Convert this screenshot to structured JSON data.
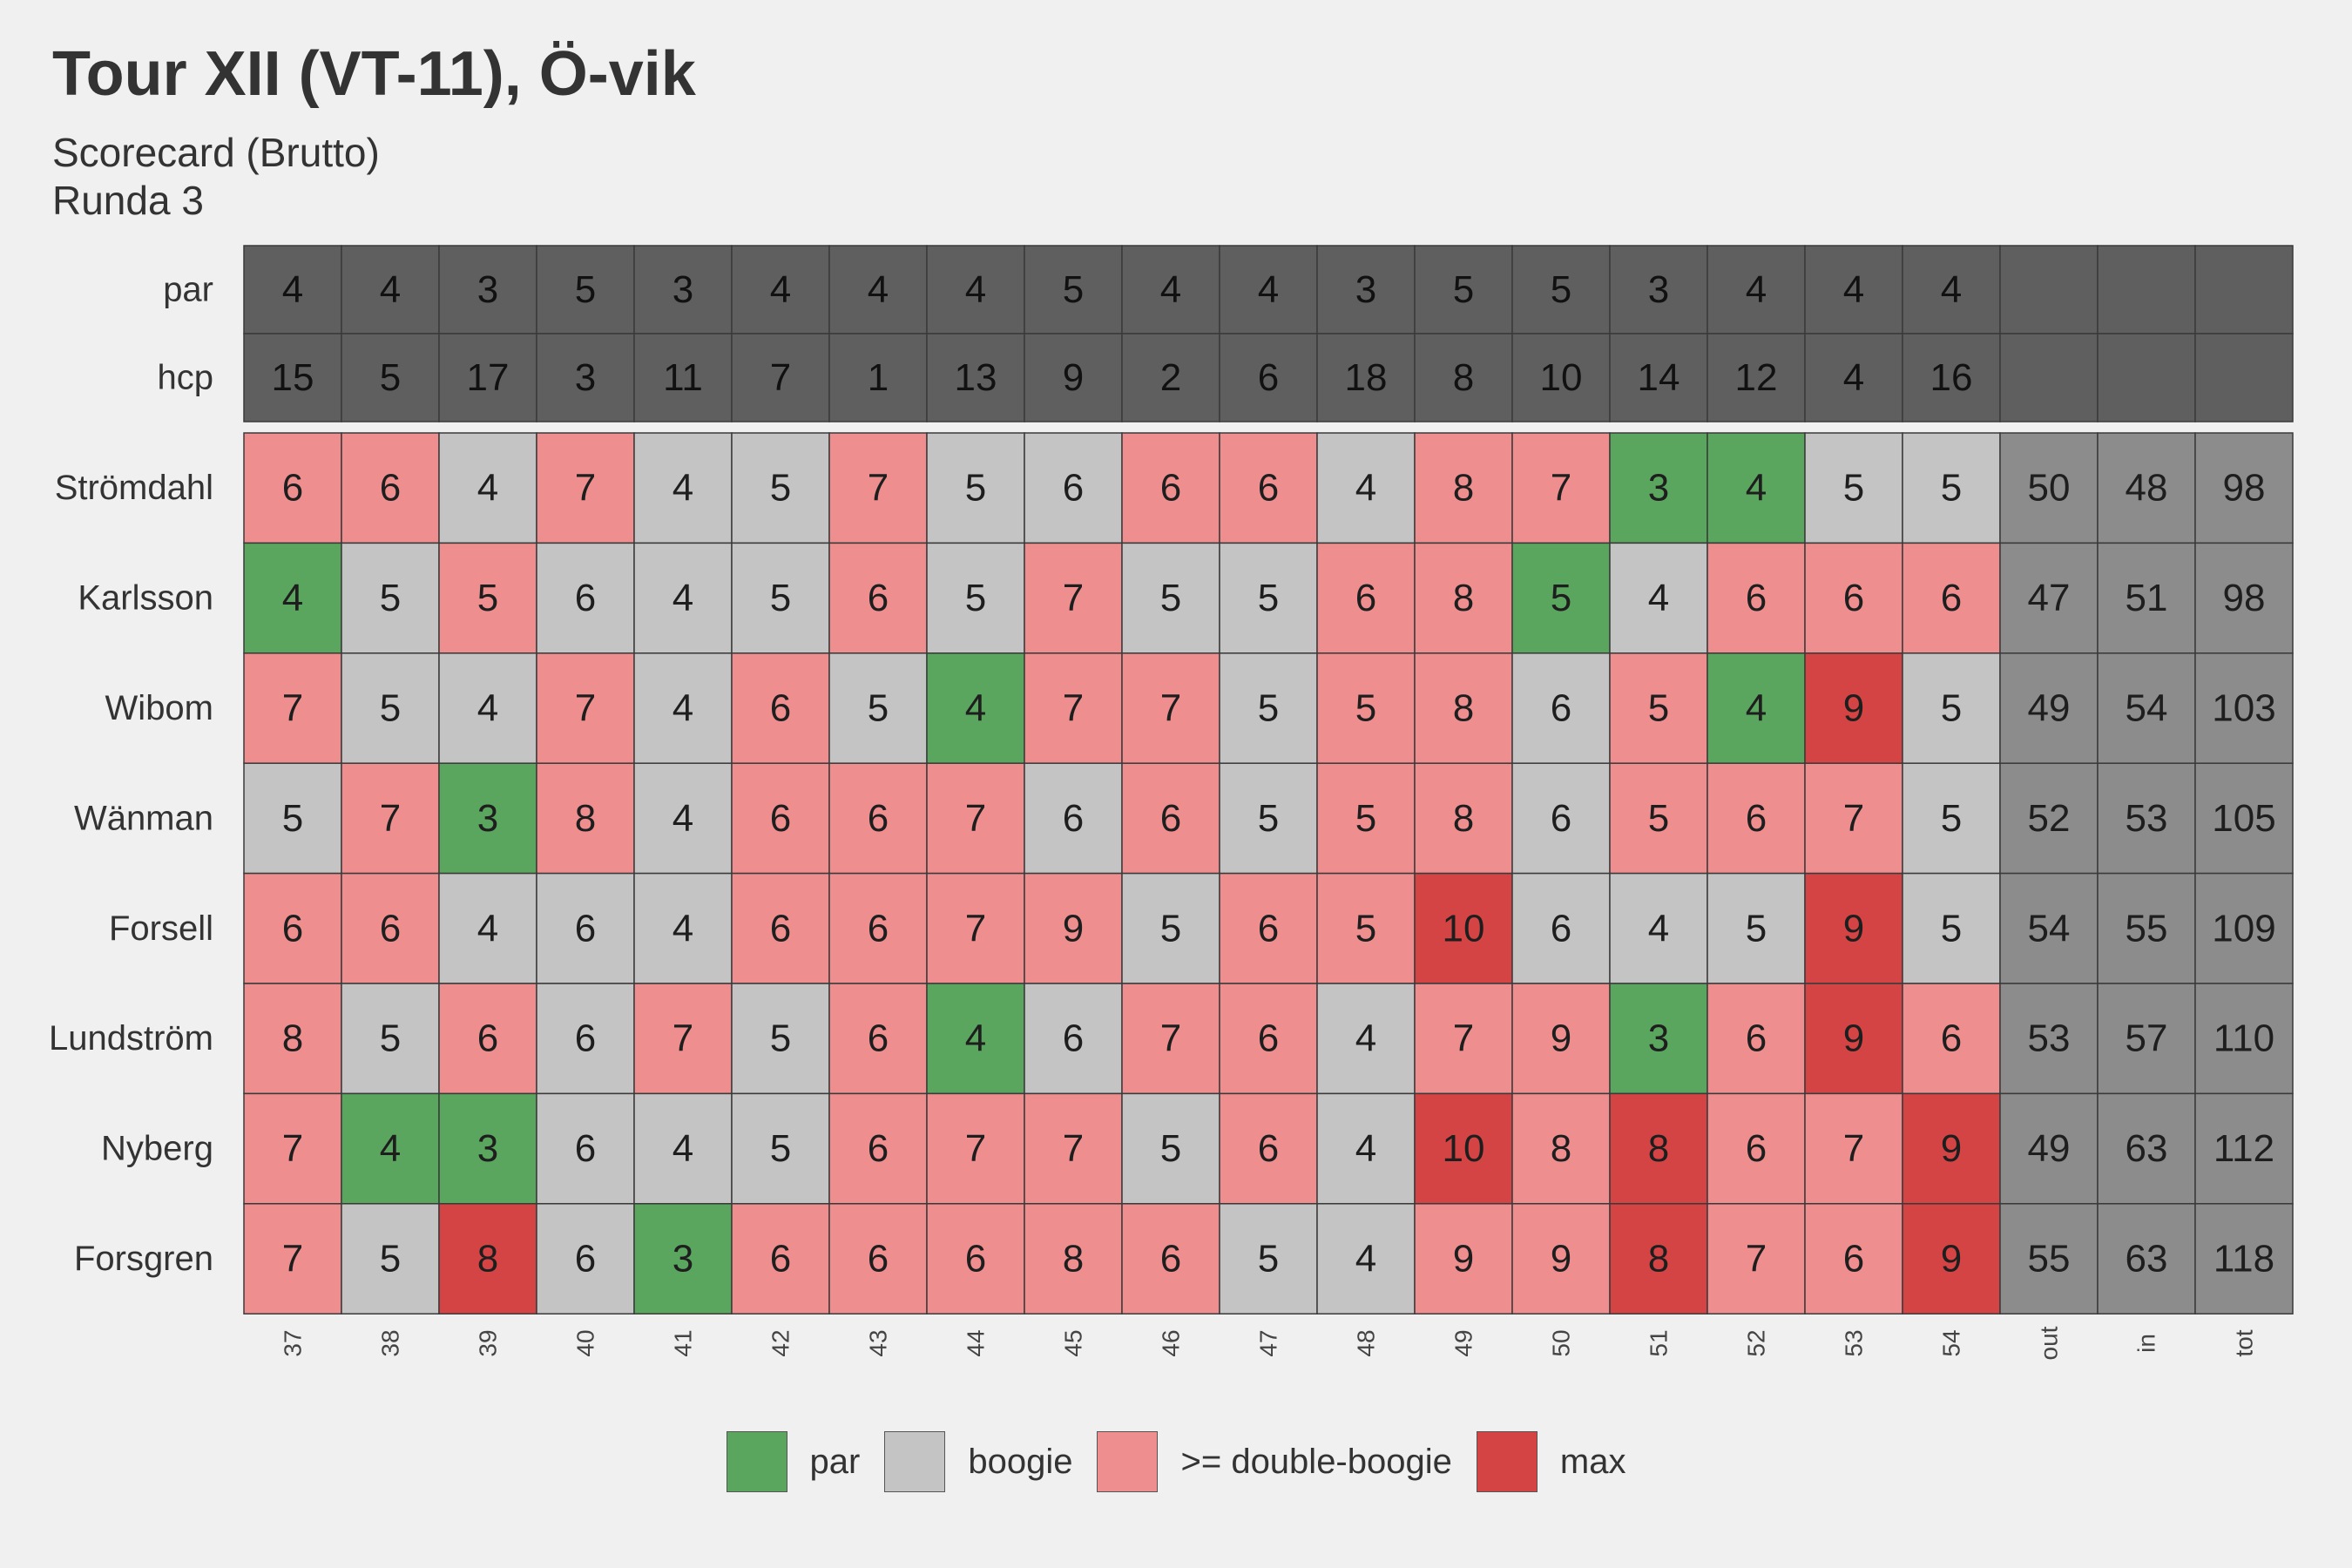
{
  "title": "Tour XII (VT-11), Ö-vik",
  "subtitle_line1": "Scorecard (Brutto)",
  "subtitle_line2": "Runda 3",
  "colors": {
    "par": "#5aa65e",
    "boogie": "#c4c4c4",
    "double": "#ef8e8e",
    "max": "#d54444",
    "header": "#5f5f5f",
    "totals": "#8c8c8c"
  },
  "chart_data": {
    "type": "heatmap",
    "columns": [
      "37",
      "38",
      "39",
      "40",
      "41",
      "42",
      "43",
      "44",
      "45",
      "46",
      "47",
      "48",
      "49",
      "50",
      "51",
      "52",
      "53",
      "54",
      "out",
      "in",
      "tot"
    ],
    "header_rows": [
      {
        "label": "par",
        "values": [
          4,
          4,
          3,
          5,
          3,
          4,
          4,
          4,
          5,
          4,
          4,
          3,
          5,
          5,
          3,
          4,
          4,
          4
        ]
      },
      {
        "label": "hcp",
        "values": [
          15,
          5,
          17,
          3,
          11,
          7,
          1,
          13,
          9,
          2,
          6,
          18,
          8,
          10,
          14,
          12,
          4,
          16
        ]
      }
    ],
    "players": [
      {
        "name": "Strömdahl",
        "scores": [
          6,
          6,
          4,
          7,
          4,
          5,
          7,
          5,
          6,
          6,
          6,
          4,
          8,
          7,
          3,
          4,
          5,
          5
        ],
        "totals": [
          50,
          48,
          98
        ],
        "categories": [
          "double",
          "double",
          "boogie",
          "double",
          "boogie",
          "boogie",
          "double",
          "boogie",
          "boogie",
          "double",
          "double",
          "boogie",
          "double",
          "double",
          "par",
          "par",
          "boogie",
          "boogie"
        ]
      },
      {
        "name": "Karlsson",
        "scores": [
          4,
          5,
          5,
          6,
          4,
          5,
          6,
          5,
          7,
          5,
          5,
          6,
          8,
          5,
          4,
          6,
          6,
          6
        ],
        "totals": [
          47,
          51,
          98
        ],
        "categories": [
          "par",
          "boogie",
          "double",
          "boogie",
          "boogie",
          "boogie",
          "double",
          "boogie",
          "double",
          "boogie",
          "boogie",
          "double",
          "double",
          "par",
          "boogie",
          "double",
          "double",
          "double"
        ]
      },
      {
        "name": "Wibom",
        "scores": [
          7,
          5,
          4,
          7,
          4,
          6,
          5,
          4,
          7,
          7,
          5,
          5,
          8,
          6,
          5,
          4,
          9,
          5
        ],
        "totals": [
          49,
          54,
          103
        ],
        "categories": [
          "double",
          "boogie",
          "boogie",
          "double",
          "boogie",
          "double",
          "boogie",
          "par",
          "double",
          "double",
          "boogie",
          "double",
          "double",
          "boogie",
          "double",
          "par",
          "max",
          "boogie"
        ]
      },
      {
        "name": "Wänman",
        "scores": [
          5,
          7,
          3,
          8,
          4,
          6,
          6,
          7,
          6,
          6,
          5,
          5,
          8,
          6,
          5,
          6,
          7,
          5
        ],
        "totals": [
          52,
          53,
          105
        ],
        "categories": [
          "boogie",
          "double",
          "par",
          "double",
          "boogie",
          "double",
          "double",
          "double",
          "boogie",
          "double",
          "boogie",
          "double",
          "double",
          "boogie",
          "double",
          "double",
          "double",
          "boogie"
        ]
      },
      {
        "name": "Forsell",
        "scores": [
          6,
          6,
          4,
          6,
          4,
          6,
          6,
          7,
          9,
          5,
          6,
          5,
          10,
          6,
          4,
          5,
          9,
          5
        ],
        "totals": [
          54,
          55,
          109
        ],
        "categories": [
          "double",
          "double",
          "boogie",
          "boogie",
          "boogie",
          "double",
          "double",
          "double",
          "double",
          "boogie",
          "double",
          "double",
          "max",
          "boogie",
          "boogie",
          "boogie",
          "max",
          "boogie"
        ]
      },
      {
        "name": "Lundström",
        "scores": [
          8,
          5,
          6,
          6,
          7,
          5,
          6,
          4,
          6,
          7,
          6,
          4,
          7,
          9,
          3,
          6,
          9,
          6
        ],
        "totals": [
          53,
          57,
          110
        ],
        "categories": [
          "double",
          "boogie",
          "double",
          "boogie",
          "double",
          "boogie",
          "double",
          "par",
          "boogie",
          "double",
          "double",
          "boogie",
          "double",
          "double",
          "par",
          "double",
          "max",
          "double"
        ]
      },
      {
        "name": "Nyberg",
        "scores": [
          7,
          4,
          3,
          6,
          4,
          5,
          6,
          7,
          7,
          5,
          6,
          4,
          10,
          8,
          8,
          6,
          7,
          9
        ],
        "totals": [
          49,
          63,
          112
        ],
        "categories": [
          "double",
          "par",
          "par",
          "boogie",
          "boogie",
          "boogie",
          "double",
          "double",
          "double",
          "boogie",
          "double",
          "boogie",
          "max",
          "double",
          "max",
          "double",
          "double",
          "max"
        ]
      },
      {
        "name": "Forsgren",
        "scores": [
          7,
          5,
          8,
          6,
          3,
          6,
          6,
          6,
          8,
          6,
          5,
          4,
          9,
          9,
          8,
          7,
          6,
          9
        ],
        "totals": [
          55,
          63,
          118
        ],
        "categories": [
          "double",
          "boogie",
          "max",
          "boogie",
          "par",
          "double",
          "double",
          "double",
          "double",
          "double",
          "boogie",
          "boogie",
          "double",
          "double",
          "max",
          "double",
          "double",
          "max"
        ]
      }
    ],
    "legend": [
      {
        "key": "par",
        "label": "par"
      },
      {
        "key": "boogie",
        "label": "boogie"
      },
      {
        "key": "double",
        "label": ">= double-boogie"
      },
      {
        "key": "max",
        "label": "max"
      }
    ],
    "legend_position": "bottom"
  }
}
